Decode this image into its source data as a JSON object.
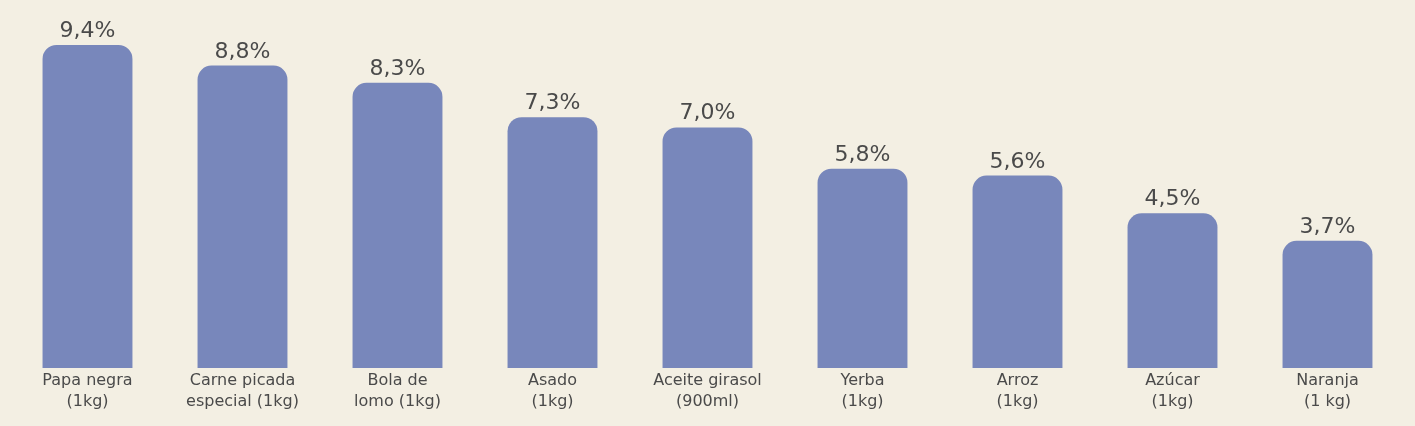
{
  "chart_data": {
    "type": "bar",
    "categories": [
      "Papa negra (1kg)",
      "Carne picada especial (1kg)",
      "Bola de lomo (1kg)",
      "Asado (1kg)",
      "Aceite girasol (900ml)",
      "Yerba (1kg)",
      "Arroz (1kg)",
      "Azúcar (1kg)",
      "Naranja (1 kg)"
    ],
    "values": [
      9.4,
      8.8,
      8.3,
      7.3,
      7.0,
      5.8,
      5.6,
      4.5,
      3.7
    ],
    "value_labels": [
      "9,4%",
      "8,8%",
      "8,3%",
      "7,3%",
      "7,0%",
      "5,8%",
      "5,6%",
      "4,5%",
      "3,7%"
    ],
    "color": "#7887bb",
    "grid": false,
    "legend": false
  }
}
